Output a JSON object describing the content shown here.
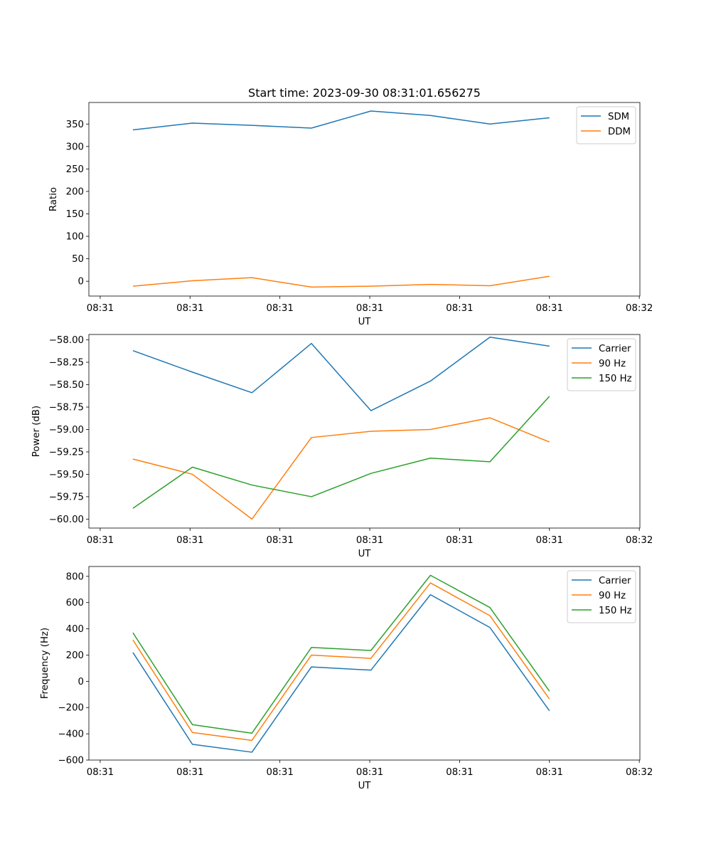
{
  "figure_title": "Start time: 2023-09-30 08:31:01.656275",
  "chart_data": [
    {
      "type": "line",
      "title": "Start time: 2023-09-30 08:31:01.656275",
      "xlabel": "UT",
      "ylabel": "Ratio",
      "x": [
        1,
        2,
        3,
        4,
        5,
        6,
        7,
        8
      ],
      "xlim": [
        0.26,
        9.52
      ],
      "ylim": [
        -33,
        398
      ],
      "x_ticks": [
        0.45,
        1.96,
        3.47,
        4.98,
        6.49,
        8.0,
        9.51
      ],
      "x_tick_labels": [
        "08:31",
        "08:31",
        "08:31",
        "08:31",
        "08:31",
        "08:31",
        "08:32"
      ],
      "y_ticks": [
        0,
        50,
        100,
        150,
        200,
        250,
        300,
        350
      ],
      "y_tick_labels": [
        "0",
        "50",
        "100",
        "150",
        "200",
        "250",
        "300",
        "350"
      ],
      "legend_position": "top-right",
      "series": [
        {
          "name": "SDM",
          "color": "#1f77b4",
          "values": [
            337,
            352,
            347,
            341,
            379,
            369,
            350,
            364
          ]
        },
        {
          "name": "DDM",
          "color": "#ff7f0e",
          "values": [
            -11,
            1,
            8,
            -13,
            -11,
            -7,
            -10,
            11
          ]
        }
      ]
    },
    {
      "type": "line",
      "title": "",
      "xlabel": "UT",
      "ylabel": "Power (dB)",
      "x": [
        1,
        2,
        3,
        4,
        5,
        6,
        7,
        8
      ],
      "xlim": [
        0.26,
        9.52
      ],
      "ylim": [
        -60.1,
        -57.94
      ],
      "x_ticks": [
        0.45,
        1.96,
        3.47,
        4.98,
        6.49,
        8.0,
        9.51
      ],
      "x_tick_labels": [
        "08:31",
        "08:31",
        "08:31",
        "08:31",
        "08:31",
        "08:31",
        "08:32"
      ],
      "y_ticks": [
        -58.0,
        -58.25,
        -58.5,
        -58.75,
        -59.0,
        -59.25,
        -59.5,
        -59.75,
        -60.0
      ],
      "y_tick_labels": [
        "−58.00",
        "−58.25",
        "−58.50",
        "−58.75",
        "−59.00",
        "−59.25",
        "−59.50",
        "−59.75",
        "−60.00"
      ],
      "legend_position": "top-right",
      "series": [
        {
          "name": "Carrier",
          "color": "#1f77b4",
          "values": [
            -58.12,
            -58.36,
            -58.59,
            -58.04,
            -58.79,
            -58.46,
            -57.97,
            -58.07
          ]
        },
        {
          "name": "90 Hz",
          "color": "#ff7f0e",
          "values": [
            -59.33,
            -59.5,
            -60.0,
            -59.09,
            -59.02,
            -59.0,
            -58.87,
            -59.14
          ]
        },
        {
          "name": "150 Hz",
          "color": "#2ca02c",
          "values": [
            -59.88,
            -59.42,
            -59.62,
            -59.75,
            -59.49,
            -59.32,
            -59.36,
            -58.63
          ]
        }
      ]
    },
    {
      "type": "line",
      "title": "",
      "xlabel": "UT",
      "ylabel": "Frequency (Hz)",
      "x": [
        1,
        2,
        3,
        4,
        5,
        6,
        7,
        8
      ],
      "xlim": [
        0.26,
        9.52
      ],
      "ylim": [
        -600,
        875
      ],
      "x_ticks": [
        0.45,
        1.96,
        3.47,
        4.98,
        6.49,
        8.0,
        9.51
      ],
      "x_tick_labels": [
        "08:31",
        "08:31",
        "08:31",
        "08:31",
        "08:31",
        "08:31",
        "08:32"
      ],
      "y_ticks": [
        -600,
        -400,
        -200,
        0,
        200,
        400,
        600,
        800
      ],
      "y_tick_labels": [
        "−600",
        "−400",
        "−200",
        "0",
        "200",
        "400",
        "600",
        "800"
      ],
      "legend_position": "top-right",
      "series": [
        {
          "name": "Carrier",
          "color": "#1f77b4",
          "values": [
            220,
            -480,
            -540,
            110,
            85,
            660,
            410,
            -225
          ]
        },
        {
          "name": "90 Hz",
          "color": "#ff7f0e",
          "values": [
            315,
            -390,
            -450,
            200,
            175,
            750,
            500,
            -135
          ]
        },
        {
          "name": "150 Hz",
          "color": "#2ca02c",
          "values": [
            370,
            -330,
            -395,
            258,
            235,
            808,
            562,
            -75
          ]
        }
      ]
    }
  ]
}
